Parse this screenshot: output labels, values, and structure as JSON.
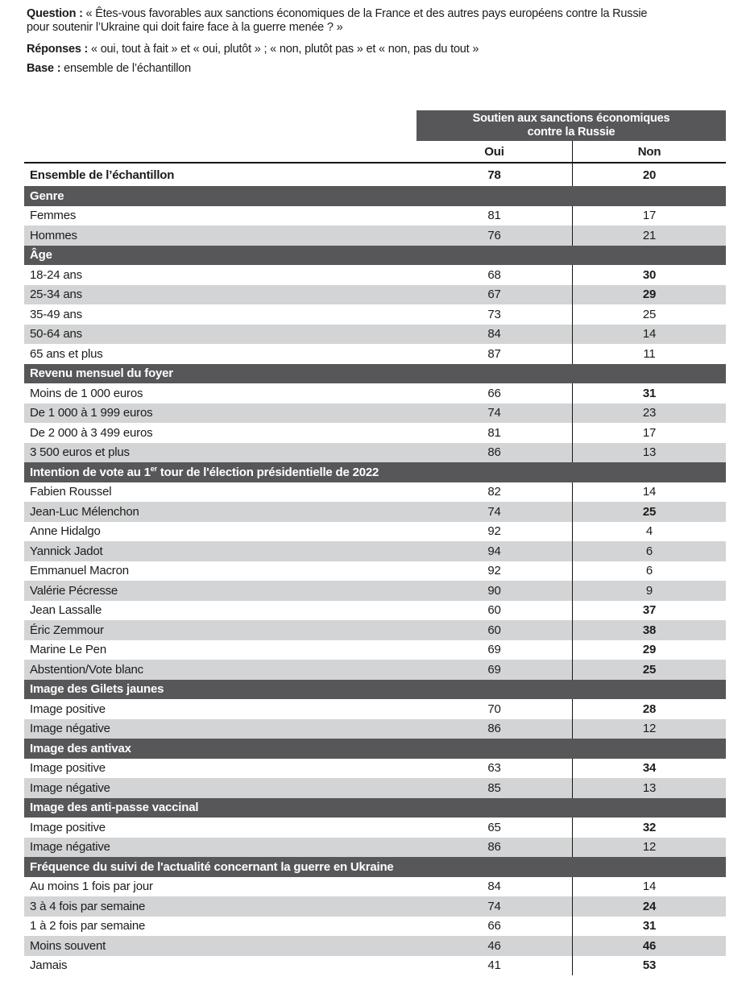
{
  "intro": {
    "question_label": "Question :",
    "question_text": " « Êtes-vous favorables aux sanctions économiques de la France et des autres pays européens contre la Russie\npour soutenir l’Ukraine qui doit faire face à la guerre menée ? »",
    "responses_label": "Réponses :",
    "responses_text": " « oui, tout à fait » et « oui, plutôt » ; « non, plutôt pas » et « non, pas du tout »",
    "base_label": "Base :",
    "base_text": " ensemble de l’échantillon"
  },
  "table": {
    "header": {
      "title": "Soutien aux sanctions économiques\ncontre la Russie",
      "col_oui": "Oui",
      "col_non": "Non"
    },
    "rows": [
      {
        "type": "total",
        "label": "Ensemble de l’échantillon",
        "oui": "78",
        "non": "20",
        "oui_bold": true,
        "non_bold": true
      },
      {
        "type": "section",
        "label": "Genre"
      },
      {
        "type": "data",
        "label": "Femmes",
        "oui": "81",
        "non": "17"
      },
      {
        "type": "data",
        "label": "Hommes",
        "oui": "76",
        "non": "21"
      },
      {
        "type": "section",
        "label": "Âge"
      },
      {
        "type": "data",
        "label": "18-24 ans",
        "oui": "68",
        "non": "30",
        "non_bold": true
      },
      {
        "type": "data",
        "label": "25-34 ans",
        "oui": "67",
        "non": "29",
        "non_bold": true
      },
      {
        "type": "data",
        "label": "35-49 ans",
        "oui": "73",
        "non": "25"
      },
      {
        "type": "data",
        "label": "50-64 ans",
        "oui": "84",
        "non": "14"
      },
      {
        "type": "data",
        "label": "65 ans et plus",
        "oui": "87",
        "non": "11"
      },
      {
        "type": "section",
        "label": "Revenu mensuel du foyer"
      },
      {
        "type": "data",
        "label": "Moins de 1 000 euros",
        "oui": "66",
        "non": "31",
        "non_bold": true
      },
      {
        "type": "data",
        "label": "De 1 000 à 1 999 euros",
        "oui": "74",
        "non": "23"
      },
      {
        "type": "data",
        "label": "De 2 000 à 3 499 euros",
        "oui": "81",
        "non": "17"
      },
      {
        "type": "data",
        "label": "3 500 euros et plus",
        "oui": "86",
        "non": "13"
      },
      {
        "type": "section",
        "label": "Intention de vote au 1er tour de l'élection présidentielle de 2022",
        "parts": [
          {
            "t": "Intention de vote au 1"
          },
          {
            "t": "er",
            "sup": true
          },
          {
            "t": " tour de l'élection présidentielle de 2022"
          }
        ]
      },
      {
        "type": "data",
        "label": "Fabien Roussel",
        "oui": "82",
        "non": "14"
      },
      {
        "type": "data",
        "label": "Jean-Luc Mélenchon",
        "oui": "74",
        "non": "25",
        "non_bold": true
      },
      {
        "type": "data",
        "label": "Anne Hidalgo",
        "oui": "92",
        "non": "4"
      },
      {
        "type": "data",
        "label": "Yannick Jadot",
        "oui": "94",
        "non": "6"
      },
      {
        "type": "data",
        "label": "Emmanuel Macron",
        "oui": "92",
        "non": "6"
      },
      {
        "type": "data",
        "label": "Valérie Pécresse",
        "oui": "90",
        "non": "9"
      },
      {
        "type": "data",
        "label": "Jean Lassalle",
        "oui": "60",
        "non": "37",
        "non_bold": true
      },
      {
        "type": "data",
        "label": "Éric Zemmour",
        "oui": "60",
        "non": "38",
        "non_bold": true
      },
      {
        "type": "data",
        "label": "Marine Le Pen",
        "oui": "69",
        "non": "29",
        "non_bold": true
      },
      {
        "type": "data",
        "label": "Abstention/Vote blanc",
        "oui": "69",
        "non": "25",
        "non_bold": true
      },
      {
        "type": "section",
        "label": "Image des Gilets jaunes"
      },
      {
        "type": "data",
        "label": "Image positive",
        "oui": "70",
        "non": "28",
        "non_bold": true
      },
      {
        "type": "data",
        "label": "Image négative",
        "oui": "86",
        "non": "12"
      },
      {
        "type": "section",
        "label": "Image des antivax"
      },
      {
        "type": "data",
        "label": "Image positive",
        "oui": "63",
        "non": "34",
        "non_bold": true
      },
      {
        "type": "data",
        "label": "Image négative",
        "oui": "85",
        "non": "13"
      },
      {
        "type": "section",
        "label": "Image des anti-passe vaccinal"
      },
      {
        "type": "data",
        "label": "Image positive",
        "oui": "65",
        "non": "32",
        "non_bold": true
      },
      {
        "type": "data",
        "label": "Image négative",
        "oui": "86",
        "non": "12"
      },
      {
        "type": "section",
        "label": "Fréquence du suivi de l'actualité concernant la guerre en Ukraine"
      },
      {
        "type": "data",
        "label": "Au moins 1 fois par jour",
        "oui": "84",
        "non": "14"
      },
      {
        "type": "data",
        "label": "3 à 4 fois par semaine",
        "oui": "74",
        "non": "24",
        "non_bold": true
      },
      {
        "type": "data",
        "label": "1 à 2 fois par semaine",
        "oui": "66",
        "non": "31",
        "non_bold": true
      },
      {
        "type": "data",
        "label": "Moins souvent",
        "oui": "46",
        "non": "46",
        "non_bold": true
      },
      {
        "type": "data",
        "label": "Jamais",
        "oui": "41",
        "non": "53",
        "non_bold": true
      }
    ]
  },
  "colors": {
    "section_bar": "#57575a",
    "alt_row": "#d3d4d6",
    "rule": "#161616",
    "text": "#1c1c1c",
    "bar_text": "#ffffff"
  }
}
